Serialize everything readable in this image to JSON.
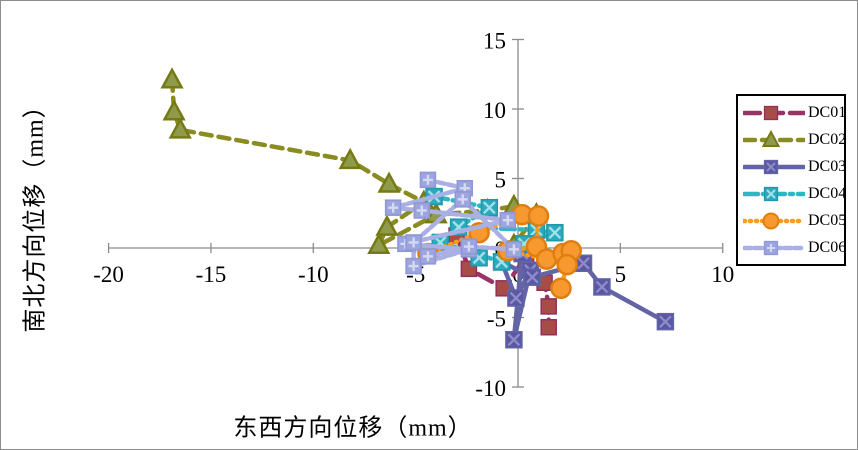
{
  "chart_data": {
    "type": "scatter",
    "title": "",
    "xlabel": "东西方向位移（mm）",
    "ylabel": "南北方向位移（mm）",
    "xlim": [
      -20,
      10
    ],
    "ylim": [
      -10,
      15
    ],
    "x_ticks": [
      -20,
      -15,
      -10,
      -5,
      0,
      5,
      10
    ],
    "y_ticks": [
      -10,
      -5,
      0,
      5,
      10,
      15
    ],
    "grid": false,
    "legend_position": "right",
    "colors": {
      "axis": "#8c8c8c",
      "frame": "#8c8c8c",
      "background": "#ffffff",
      "legend_border": "#000000"
    },
    "series": [
      {
        "name": "DC01",
        "line_color": "#993366",
        "line_style": "long-dash",
        "marker": "square",
        "marker_fill": "#a84d45",
        "marker_stroke": "#8e3060",
        "points": [
          [
            -3.0,
            0.9
          ],
          [
            -2.4,
            -1.5
          ],
          [
            -0.7,
            -2.9
          ],
          [
            0.4,
            -0.6
          ],
          [
            1.3,
            -2.5
          ],
          [
            1.5,
            -4.2
          ],
          [
            1.5,
            -5.7
          ]
        ]
      },
      {
        "name": "DC02",
        "line_color": "#8a8b21",
        "line_style": "dash",
        "marker": "triangle",
        "marker_fill": "#8f9a4b",
        "marker_stroke": "#767a14",
        "points": [
          [
            -16.9,
            12.1
          ],
          [
            -16.8,
            9.8
          ],
          [
            -16.5,
            8.5
          ],
          [
            -8.2,
            6.3
          ],
          [
            -6.3,
            4.6
          ],
          [
            -4.6,
            3.3
          ],
          [
            -6.4,
            1.5
          ],
          [
            -6.8,
            0.2
          ],
          [
            -4.0,
            2.4
          ],
          [
            -1.5,
            2.7
          ],
          [
            -0.2,
            3.0
          ],
          [
            0.9,
            2.4
          ],
          [
            -0.2,
            0.2
          ]
        ]
      },
      {
        "name": "DC03",
        "line_color": "#6364a6",
        "line_style": "solid",
        "marker": "x-square",
        "marker_fill": "#5a58a3",
        "marker_stroke": "#6364a6",
        "marker_inner": "#8d8bc8",
        "points": [
          [
            0.2,
            -0.4
          ],
          [
            -0.2,
            -6.6
          ],
          [
            0.6,
            -1.6
          ],
          [
            -0.1,
            -3.6
          ],
          [
            -0.8,
            -1.0
          ],
          [
            0.7,
            -2.1
          ],
          [
            3.2,
            -1.1
          ],
          [
            4.1,
            -2.8
          ],
          [
            7.2,
            -5.3
          ]
        ]
      },
      {
        "name": "DC04",
        "line_color": "#2eb6c4",
        "line_style": "dash-dot",
        "marker": "x-square",
        "marker_fill": "#2ca9bc",
        "marker_stroke": "#1f98aa",
        "marker_inner": "#9fe2ea",
        "points": [
          [
            -4.1,
            3.7
          ],
          [
            -1.4,
            2.9
          ],
          [
            -2.9,
            1.5
          ],
          [
            0.9,
            1.3
          ],
          [
            1.8,
            1.1
          ],
          [
            0.3,
            0.3
          ],
          [
            -0.8,
            -1.0
          ],
          [
            -3.8,
            0.4
          ],
          [
            -1.9,
            -0.7
          ]
        ]
      },
      {
        "name": "DC05",
        "line_color": "#fc9b1e",
        "line_style": "dotted",
        "marker": "circle",
        "marker_fill": "#f8992f",
        "marker_stroke": "#e07e10",
        "points": [
          [
            -4.4,
            -0.4
          ],
          [
            -1.9,
            1.1
          ],
          [
            0.2,
            2.4
          ],
          [
            1.0,
            2.3
          ],
          [
            0.9,
            0.1
          ],
          [
            -0.5,
            -0.2
          ],
          [
            1.4,
            -0.8
          ],
          [
            2.2,
            -0.4
          ],
          [
            2.6,
            -0.2
          ],
          [
            2.4,
            -1.2
          ],
          [
            2.1,
            -2.9
          ]
        ]
      },
      {
        "name": "DC06",
        "line_color": "#abb0e4",
        "line_style": "fine-dash",
        "marker": "plus-square",
        "marker_fill": "#9da5df",
        "marker_stroke": "#8f97d4",
        "marker_inner": "#d5d9f2",
        "points": [
          [
            -4.4,
            4.9
          ],
          [
            -2.6,
            4.3
          ],
          [
            -6.1,
            2.9
          ],
          [
            -4.7,
            2.7
          ],
          [
            -0.5,
            2.0
          ],
          [
            -5.5,
            0.3
          ],
          [
            -2.4,
            -0.1
          ],
          [
            -5.1,
            -1.3
          ],
          [
            -5.1,
            0.4
          ],
          [
            -2.7,
            3.5
          ],
          [
            -0.2,
            -0.1
          ],
          [
            -2.4,
            0.1
          ],
          [
            -4.4,
            -0.6
          ]
        ]
      }
    ]
  }
}
